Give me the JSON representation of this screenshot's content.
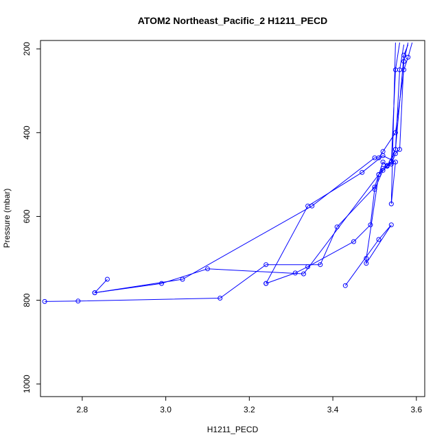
{
  "chart_data": {
    "type": "line",
    "title": "ATOM2 Northeast_Pacific_2 H1211_PECD",
    "xlabel": "H1211_PECD",
    "ylabel": "Pressure (mbar)",
    "xlim": [
      2.7,
      3.62
    ],
    "ylim": [
      1030,
      180
    ],
    "y_inverted": true,
    "xticks": [
      2.8,
      3.0,
      3.2,
      3.4,
      3.6
    ],
    "yticks": [
      200,
      400,
      600,
      800,
      1000
    ],
    "grid": false,
    "color": "#0000ff",
    "series": [
      {
        "x": [
          3.58,
          3.57,
          3.55,
          3.54,
          3.52,
          3.5,
          3.49,
          3.45,
          3.34,
          3.31,
          3.24
        ],
        "y": [
          190,
          215,
          440,
          470,
          490,
          535,
          620,
          660,
          720,
          735,
          760
        ]
      },
      {
        "x": [
          3.57,
          3.56,
          3.55,
          3.53,
          3.52,
          3.5,
          3.41,
          3.37,
          3.24,
          3.13,
          2.79,
          2.71
        ],
        "y": [
          190,
          250,
          440,
          480,
          470,
          530,
          625,
          715,
          715,
          795,
          802,
          803
        ]
      },
      {
        "x": [
          3.59,
          3.58,
          3.57,
          3.55,
          3.52,
          3.51,
          3.5,
          3.35,
          3.04,
          2.83,
          2.86
        ],
        "y": [
          185,
          220,
          250,
          400,
          445,
          460,
          460,
          575,
          750,
          782,
          750
        ]
      },
      {
        "x": [
          3.56,
          3.55,
          3.54,
          3.53,
          3.52,
          3.51,
          3.33,
          3.1,
          2.99,
          2.83
        ],
        "y": [
          185,
          250,
          470,
          478,
          485,
          500,
          737,
          725,
          760,
          782
        ]
      },
      {
        "x": [
          3.58,
          3.57,
          3.56,
          3.55,
          3.54,
          3.53,
          3.51,
          3.48,
          3.48,
          3.54,
          3.51,
          3.43
        ],
        "y": [
          185,
          230,
          440,
          450,
          475,
          480,
          500,
          700,
          712,
          620,
          655,
          765
        ]
      },
      {
        "x": [
          3.55,
          3.54,
          3.55,
          3.52,
          3.47,
          3.34,
          3.24
        ],
        "y": [
          185,
          570,
          470,
          455,
          495,
          575,
          760
        ]
      }
    ]
  }
}
